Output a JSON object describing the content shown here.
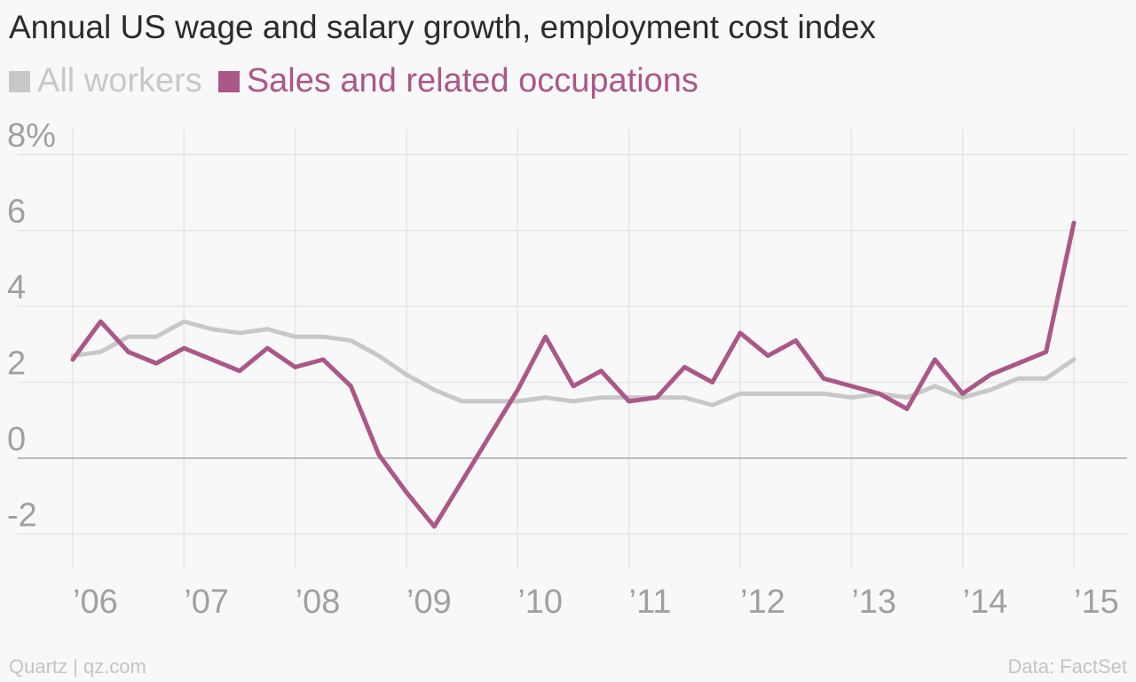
{
  "footer": {
    "source_left": "Quartz | qz.com",
    "source_right": "Data: FactSet"
  },
  "chart_data": {
    "type": "line",
    "title": "Annual US wage and salary growth, employment cost index",
    "xlabel": "",
    "ylabel": "",
    "ylim": [
      -2.5,
      9
    ],
    "yticks": [
      -2,
      0,
      2,
      4,
      6,
      8
    ],
    "ytick_labels": [
      "-2",
      "0",
      "2",
      "4",
      "6",
      "8%"
    ],
    "xticks": [
      2006,
      2007,
      2008,
      2009,
      2010,
      2011,
      2012,
      2013,
      2014,
      2015
    ],
    "xtick_labels": [
      "’06",
      "’07",
      "’08",
      "’09",
      "’10",
      "’11",
      "’12",
      "’13",
      "’14",
      "’15"
    ],
    "grid": true,
    "legend_position": "top-left",
    "x": [
      2006.0,
      2006.25,
      2006.5,
      2006.75,
      2007.0,
      2007.25,
      2007.5,
      2007.75,
      2008.0,
      2008.25,
      2008.5,
      2008.75,
      2009.0,
      2009.25,
      2009.5,
      2009.75,
      2010.0,
      2010.25,
      2010.5,
      2010.75,
      2011.0,
      2011.25,
      2011.5,
      2011.75,
      2012.0,
      2012.25,
      2012.5,
      2012.75,
      2013.0,
      2013.25,
      2013.5,
      2013.75,
      2014.0,
      2014.25,
      2014.5,
      2014.75,
      2015.0
    ],
    "series": [
      {
        "name": "All workers",
        "color": "#c8c8c8",
        "values": [
          2.7,
          2.8,
          3.2,
          3.2,
          3.6,
          3.4,
          3.3,
          3.4,
          3.2,
          3.2,
          3.1,
          2.7,
          2.2,
          1.8,
          1.5,
          1.5,
          1.5,
          1.6,
          1.5,
          1.6,
          1.6,
          1.6,
          1.6,
          1.4,
          1.7,
          1.7,
          1.7,
          1.7,
          1.6,
          1.7,
          1.6,
          1.9,
          1.6,
          1.8,
          2.1,
          2.1,
          2.6
        ]
      },
      {
        "name": "Sales and related occupations",
        "color": "#ab5787",
        "values": [
          2.6,
          3.6,
          2.8,
          2.5,
          2.9,
          2.6,
          2.3,
          2.9,
          2.4,
          2.6,
          1.9,
          0.1,
          -0.9,
          -1.8,
          -0.6,
          0.6,
          1.8,
          3.2,
          1.9,
          2.3,
          1.5,
          1.6,
          2.4,
          2.0,
          3.3,
          2.7,
          3.1,
          2.1,
          1.9,
          1.7,
          1.3,
          2.6,
          1.7,
          2.2,
          2.5,
          2.8,
          6.2
        ]
      }
    ]
  }
}
